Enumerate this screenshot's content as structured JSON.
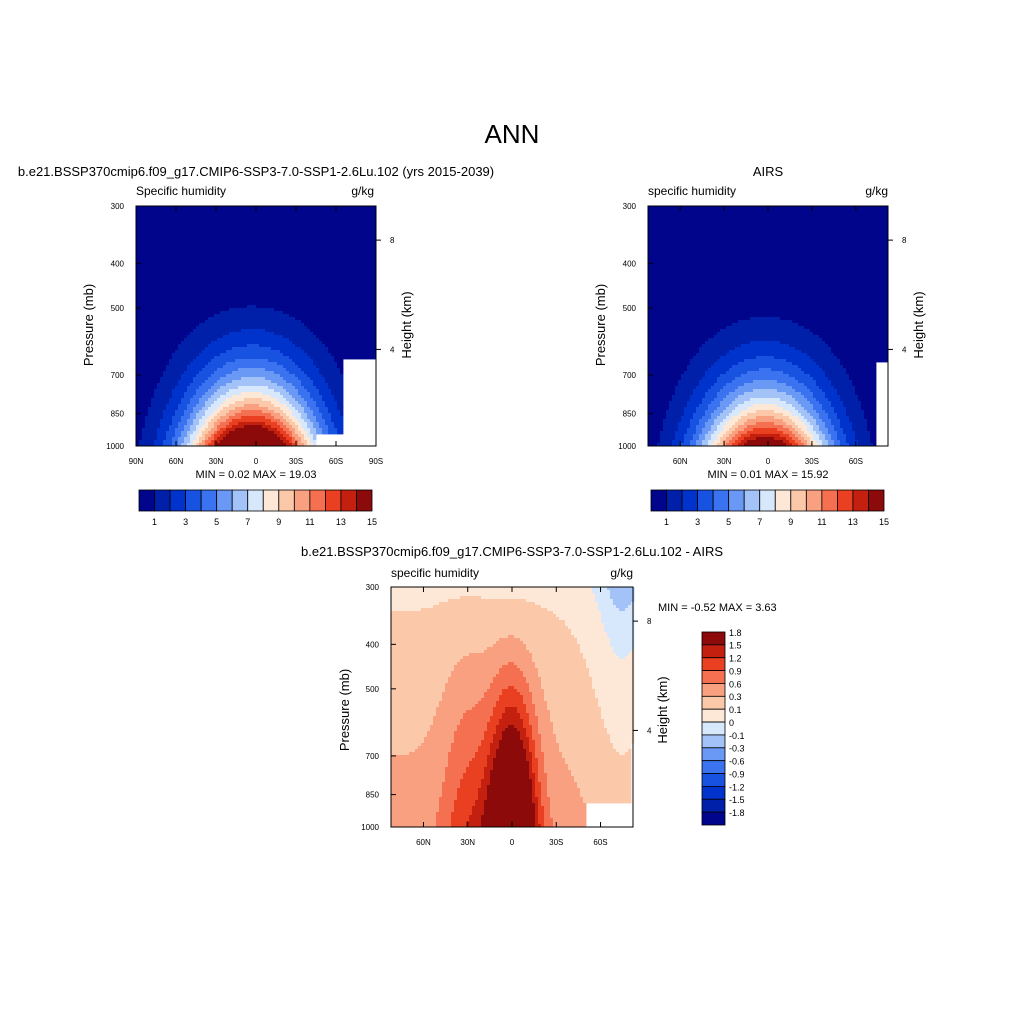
{
  "main_title": "ANN",
  "colors": {
    "model_scale": [
      "#00058c",
      "#0020aa",
      "#0033cc",
      "#1852e0",
      "#3a72f0",
      "#6a98f5",
      "#a3c2f8",
      "#d7e8fc",
      "#fde8d8",
      "#fbc8aa",
      "#f9a080",
      "#f47050",
      "#e84020",
      "#c42010",
      "#8c0a0a"
    ],
    "diff_scale": [
      "#00058c",
      "#0020aa",
      "#0033cc",
      "#1852e0",
      "#3a72f0",
      "#6a98f5",
      "#a3c2f8",
      "#d7e8fc",
      "#fde8d8",
      "#fbc8aa",
      "#f9a080",
      "#f47050",
      "#e84020",
      "#c42010",
      "#8c0a0a"
    ]
  },
  "chart_data": [
    {
      "type": "contour",
      "id": "model",
      "title": "b.e21.BSSP370cmip6.f09_g17.CMIP6-SSP3-7.0-SSP1-2.6Lu.102 (yrs 2015-2039)",
      "left_label": "Specific humidity",
      "right_label": "g/kg",
      "ylabel": "Pressure (mb)",
      "ylabel_right": "Height (km)",
      "x_ticks": [
        "90N",
        "60N",
        "30N",
        "0",
        "30S",
        "60S",
        "90S"
      ],
      "y_ticks": [
        "300",
        "400",
        "500",
        "700",
        "850",
        "1000"
      ],
      "height_ticks": [
        "8",
        "4"
      ],
      "stats": "MIN =   0.02  MAX =  19.03",
      "colorbar_labels": [
        "1",
        "3",
        "5",
        "7",
        "9",
        "11",
        "13",
        "15"
      ],
      "peak": 19.03,
      "min": 0.02
    },
    {
      "type": "contour",
      "id": "obs",
      "title": "AIRS",
      "left_label": "specific humidity",
      "right_label": "g/kg",
      "ylabel": "Pressure (mb)",
      "ylabel_right": "Height (km)",
      "x_ticks": [
        "60N",
        "30N",
        "0",
        "30S",
        "60S"
      ],
      "y_ticks": [
        "300",
        "400",
        "500",
        "700",
        "850",
        "1000"
      ],
      "height_ticks": [
        "8",
        "4"
      ],
      "stats": "MIN =   0.01  MAX =  15.92",
      "colorbar_labels": [
        "1",
        "3",
        "5",
        "7",
        "9",
        "11",
        "13",
        "15"
      ],
      "peak": 15.92,
      "min": 0.01
    },
    {
      "type": "contour",
      "id": "diff",
      "title": "b.e21.BSSP370cmip6.f09_g17.CMIP6-SSP3-7.0-SSP1-2.6Lu.102 - AIRS",
      "left_label": "specific humidity",
      "right_label": "g/kg",
      "ylabel": "Pressure (mb)",
      "ylabel_right": "Height (km)",
      "x_ticks": [
        "60N",
        "30N",
        "0",
        "30S",
        "60S"
      ],
      "y_ticks": [
        "300",
        "400",
        "500",
        "700",
        "850",
        "1000"
      ],
      "height_ticks": [
        "8",
        "4"
      ],
      "stats": "MIN =  -0.52  MAX =   3.63",
      "colorbar_labels": [
        "1.8",
        "1.5",
        "1.2",
        "0.9",
        "0.6",
        "0.3",
        "0.1",
        "0",
        "-0.1",
        "-0.3",
        "-0.6",
        "-0.9",
        "-1.2",
        "-1.5",
        "-1.8"
      ],
      "peak": 3.63,
      "min": -0.52
    }
  ]
}
